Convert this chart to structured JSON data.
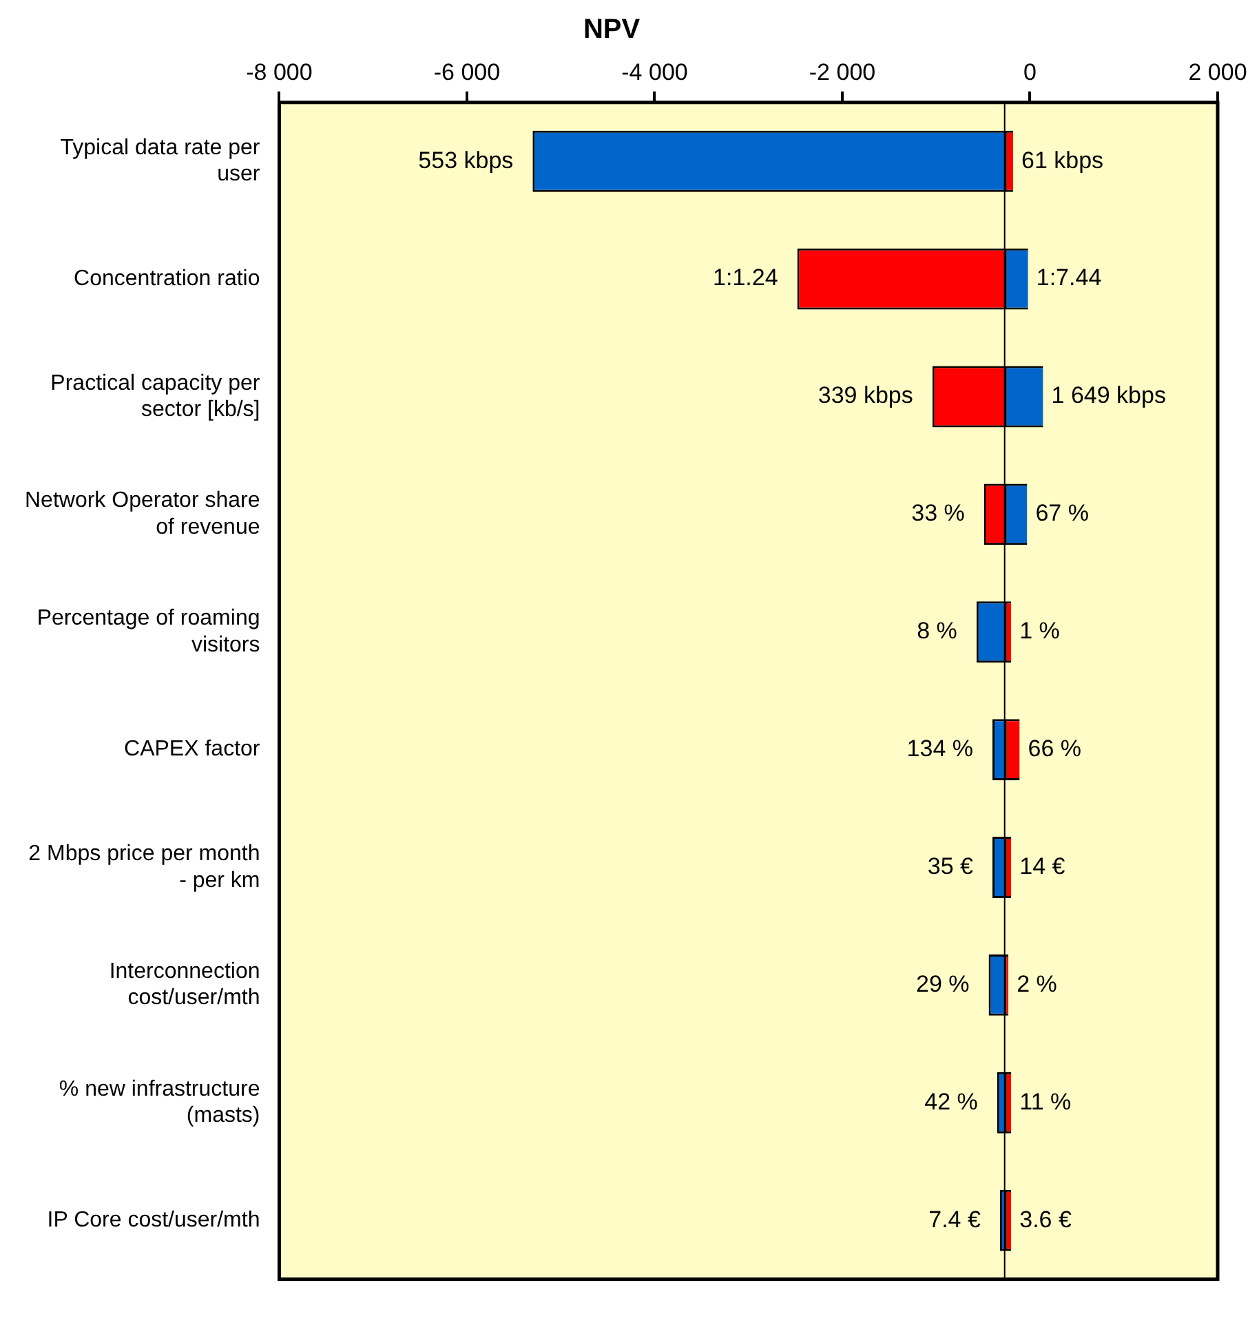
{
  "chart_data": {
    "type": "bar",
    "orientation": "horizontal",
    "title": "NPV",
    "categories": [
      "Typical data rate per user",
      "Concentration ratio",
      "Practical capacity per sector [kb/s]",
      "Network Operator share of revenue",
      "Percentage of roaming visitors",
      "CAPEX factor",
      "2 Mbps price per month - per km",
      "Interconnection cost/user/mth",
      "% new infrastructure (masts)",
      "IP Core cost/user/mth"
    ],
    "series": [
      {
        "color": "#0066cc",
        "base": [
          -270,
          -270,
          -270,
          -270,
          -270,
          -270,
          -270,
          -270,
          -270,
          -270
        ],
        "values": [
          -5030,
          250,
          410,
          240,
          -300,
          -130,
          -130,
          -170,
          -80,
          -50
        ]
      },
      {
        "color": "#ff0000",
        "base": [
          -270,
          -270,
          -270,
          -270,
          -270,
          -270,
          -270,
          -270,
          -270,
          -270
        ],
        "values": [
          90,
          -2210,
          -770,
          -220,
          70,
          160,
          70,
          40,
          70,
          70
        ]
      }
    ],
    "annotations": [
      {
        "text": "553 kbps",
        "x": -5300,
        "y": "Typical data rate per user"
      },
      {
        "text": "61 kbps",
        "x": -180,
        "y": "Typical data rate per user"
      },
      {
        "text": "1:1.24",
        "x": -2480,
        "y": "Concentration ratio"
      },
      {
        "text": "1:7.44",
        "x": -20,
        "y": "Concentration ratio"
      },
      {
        "text": "339 kbps",
        "x": -1040,
        "y": "Practical capacity per sector [kb/s]"
      },
      {
        "text": "1 649 kbps",
        "x": 140,
        "y": "Practical capacity per sector [kb/s]"
      },
      {
        "text": "33 %",
        "x": -490,
        "y": "Network Operator share of revenue"
      },
      {
        "text": "67 %",
        "x": -30,
        "y": "Network Operator share of revenue"
      },
      {
        "text": "8 %",
        "x": -570,
        "y": "Percentage of roaming visitors"
      },
      {
        "text": "1 %",
        "x": -200,
        "y": "Percentage of roaming visitors"
      },
      {
        "text": "134 %",
        "x": -400,
        "y": "CAPEX factor"
      },
      {
        "text": "66 %",
        "x": -110,
        "y": "CAPEX factor"
      },
      {
        "text": "35 €",
        "x": -400,
        "y": "2 Mbps price per month - per km"
      },
      {
        "text": "14 €",
        "x": -200,
        "y": "2 Mbps price per month - per km"
      },
      {
        "text": "29 %",
        "x": -440,
        "y": "Interconnection cost/user/mth"
      },
      {
        "text": "2 %",
        "x": -230,
        "y": "Interconnection cost/user/mth"
      },
      {
        "text": "42 %",
        "x": -350,
        "y": "% new infrastructure (masts)"
      },
      {
        "text": "11 %",
        "x": -200,
        "y": "% new infrastructure (masts)"
      },
      {
        "text": "7.4 €",
        "x": -320,
        "y": "IP Core cost/user/mth"
      },
      {
        "text": "3.6 €",
        "x": -200,
        "y": "IP Core cost/user/mth"
      }
    ],
    "xlim": [
      -8000,
      2000
    ],
    "xticks": [
      {
        "value": -8000,
        "label": "-8 000"
      },
      {
        "value": -6000,
        "label": "-6 000"
      },
      {
        "value": -4000,
        "label": "-4 000"
      },
      {
        "value": -2000,
        "label": "-2 000"
      },
      0,
      {
        "value": 2000,
        "label": "2 000"
      }
    ],
    "ref_lines": [
      {
        "axis": "x",
        "value": -270,
        "color": "#000000"
      }
    ],
    "grid": false,
    "legend": false
  }
}
